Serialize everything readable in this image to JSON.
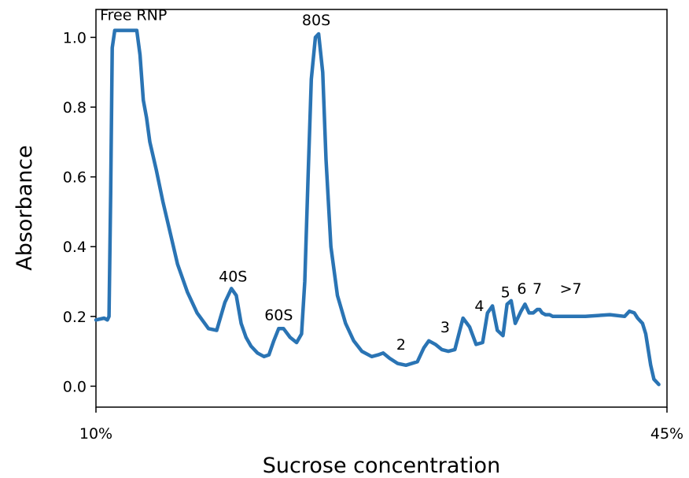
{
  "chart_data": {
    "type": "line",
    "title": "",
    "xlabel": "Sucrose concentration",
    "ylabel": "Absorbance",
    "ylim": [
      -0.06,
      1.08
    ],
    "yticks": [
      0.0,
      0.2,
      0.4,
      0.6,
      0.8,
      1.0
    ],
    "ytick_labels": [
      "0.0",
      "0.2",
      "0.4",
      "0.6",
      "0.8",
      "1.0"
    ],
    "xlim": [
      10,
      45
    ],
    "xticks": [
      10,
      45
    ],
    "xtick_labels": [
      "10%",
      "45%"
    ],
    "grid": false,
    "legend": false,
    "line_color": "#2a74b4",
    "series": [
      {
        "x": [
          10.0,
          10.5,
          10.7,
          10.8,
          10.9,
          11.0,
          11.15,
          11.3,
          12.0,
          12.5,
          12.7,
          12.9,
          13.1,
          13.3,
          13.7,
          14.1,
          14.6,
          15.0,
          15.6,
          16.2,
          16.9,
          17.4,
          17.9,
          18.3,
          18.6,
          18.9,
          19.2,
          19.5,
          19.9,
          20.3,
          20.6,
          20.9,
          21.2,
          21.5,
          21.9,
          22.3,
          22.6,
          22.8,
          23.0,
          23.2,
          23.45,
          23.65,
          23.9,
          24.1,
          24.4,
          24.8,
          25.3,
          25.8,
          26.3,
          26.9,
          27.3,
          27.6,
          28.0,
          28.5,
          29.0,
          29.7,
          30.1,
          30.4,
          30.8,
          31.2,
          31.6,
          32.0,
          32.3,
          32.5,
          32.9,
          33.3,
          33.7,
          34.0,
          34.3,
          34.6,
          34.95,
          35.2,
          35.45,
          35.7,
          36.05,
          36.3,
          36.55,
          36.8,
          37.05,
          37.2,
          37.35,
          37.55,
          37.8,
          38.0,
          38.5,
          40.0,
          41.5,
          42.4,
          42.7,
          43.0,
          43.2,
          43.5,
          43.7,
          44.0,
          44.2,
          44.5
        ],
        "y": [
          0.19,
          0.195,
          0.19,
          0.2,
          0.55,
          0.97,
          1.02,
          1.02,
          1.02,
          1.02,
          0.95,
          0.82,
          0.77,
          0.7,
          0.62,
          0.53,
          0.43,
          0.35,
          0.27,
          0.21,
          0.165,
          0.16,
          0.24,
          0.28,
          0.26,
          0.18,
          0.14,
          0.115,
          0.095,
          0.085,
          0.09,
          0.13,
          0.165,
          0.165,
          0.14,
          0.125,
          0.15,
          0.3,
          0.6,
          0.88,
          1.0,
          1.01,
          0.9,
          0.65,
          0.4,
          0.26,
          0.18,
          0.13,
          0.1,
          0.085,
          0.09,
          0.095,
          0.08,
          0.065,
          0.06,
          0.07,
          0.11,
          0.13,
          0.12,
          0.105,
          0.1,
          0.105,
          0.16,
          0.195,
          0.17,
          0.12,
          0.125,
          0.21,
          0.23,
          0.16,
          0.145,
          0.235,
          0.245,
          0.18,
          0.215,
          0.235,
          0.21,
          0.21,
          0.22,
          0.22,
          0.21,
          0.205,
          0.205,
          0.2,
          0.2,
          0.2,
          0.205,
          0.2,
          0.215,
          0.21,
          0.195,
          0.18,
          0.15,
          0.06,
          0.02,
          0.005
        ]
      }
    ],
    "annotations": [
      {
        "text": "Free RNP",
        "x": 12.3,
        "y": 1.05
      },
      {
        "text": "40S",
        "x": 18.4,
        "y": 0.3
      },
      {
        "text": "60S",
        "x": 21.2,
        "y": 0.19
      },
      {
        "text": "80S",
        "x": 23.5,
        "y": 1.035
      },
      {
        "text": "2",
        "x": 28.7,
        "y": 0.105
      },
      {
        "text": "3",
        "x": 31.4,
        "y": 0.155
      },
      {
        "text": "4",
        "x": 33.5,
        "y": 0.215
      },
      {
        "text": "5",
        "x": 35.1,
        "y": 0.255
      },
      {
        "text": "6",
        "x": 36.1,
        "y": 0.265
      },
      {
        "text": "7",
        "x": 37.05,
        "y": 0.265
      },
      {
        "text": ">7",
        "x": 39.1,
        "y": 0.265
      }
    ]
  }
}
